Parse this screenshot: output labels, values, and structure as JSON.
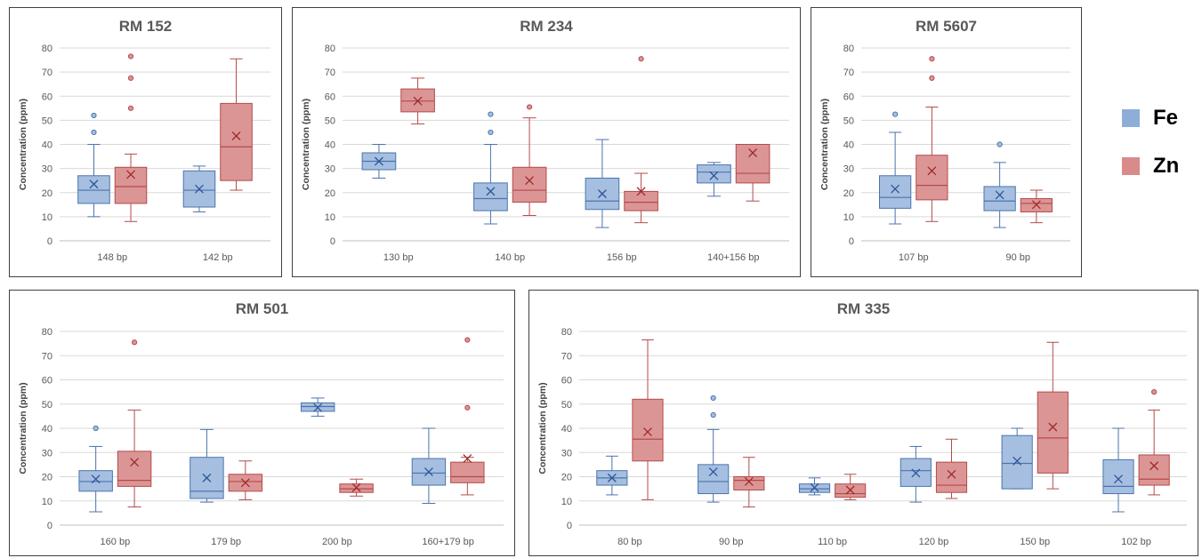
{
  "legend": [
    {
      "name": "Fe",
      "color": "#8eaed8"
    },
    {
      "name": "Zn",
      "color": "#d98a8a"
    }
  ],
  "colors": {
    "Fe_fill": "#a6bfe0",
    "Fe_stroke": "#4a74ad",
    "Fe_marker": "#2f5597",
    "Zn_fill": "#dc9595",
    "Zn_stroke": "#b54a4a",
    "Zn_marker": "#9e2a2a"
  },
  "chart_data": [
    {
      "type": "box",
      "title": "RM 152",
      "ylabel": "Concentration (ppm)",
      "ylim": [
        0,
        80
      ],
      "yticks": [
        0,
        10,
        20,
        30,
        40,
        50,
        60,
        70,
        80
      ],
      "categories": [
        "148 bp",
        "142 bp"
      ],
      "groups": [
        {
          "category": "148 bp",
          "Fe": {
            "min": 10,
            "q1": 15.5,
            "median": 21,
            "q3": 27,
            "max": 40,
            "mean": 23.5,
            "outliers": [
              45,
              52
            ]
          },
          "Zn": {
            "min": 8,
            "q1": 15.5,
            "median": 22.5,
            "q3": 30.5,
            "max": 36,
            "mean": 27.5,
            "outliers": [
              55,
              67.5,
              76.5
            ]
          }
        },
        {
          "category": "142 bp",
          "Fe": {
            "min": 12,
            "q1": 14,
            "median": 21,
            "q3": 29,
            "max": 31,
            "mean": 21.5,
            "outliers": []
          },
          "Zn": {
            "min": 21,
            "q1": 25,
            "median": 39,
            "q3": 57,
            "max": 75.5,
            "mean": 43.5,
            "outliers": []
          }
        }
      ]
    },
    {
      "type": "box",
      "title": "RM 234",
      "ylabel": "Concentration (ppm)",
      "ylim": [
        0,
        80
      ],
      "yticks": [
        0,
        10,
        20,
        30,
        40,
        50,
        60,
        70,
        80
      ],
      "categories": [
        "130 bp",
        "140 bp",
        "156 bp",
        "140+156 bp"
      ],
      "groups": [
        {
          "category": "130 bp",
          "Fe": {
            "min": 26,
            "q1": 29.5,
            "median": 33,
            "q3": 36.5,
            "max": 40,
            "mean": 33,
            "outliers": []
          },
          "Zn": {
            "min": 48.5,
            "q1": 53.5,
            "median": 58,
            "q3": 63,
            "max": 67.5,
            "mean": 58,
            "outliers": []
          }
        },
        {
          "category": "140 bp",
          "Fe": {
            "min": 7,
            "q1": 12.5,
            "median": 17.5,
            "q3": 24,
            "max": 40,
            "mean": 20.5,
            "outliers": [
              45,
              52.5
            ]
          },
          "Zn": {
            "min": 10.5,
            "q1": 16,
            "median": 21,
            "q3": 30.5,
            "max": 51,
            "mean": 25,
            "outliers": [
              55.5
            ]
          }
        },
        {
          "category": "156 bp",
          "Fe": {
            "min": 5.5,
            "q1": 13,
            "median": 16.5,
            "q3": 26,
            "max": 42,
            "mean": 19.5,
            "outliers": []
          },
          "Zn": {
            "min": 7.5,
            "q1": 12.5,
            "median": 16,
            "q3": 20.5,
            "max": 28,
            "mean": 20.5,
            "outliers": [
              75.5
            ]
          }
        },
        {
          "category": "140+156 bp",
          "Fe": {
            "min": 18.5,
            "q1": 24,
            "median": 28.5,
            "q3": 31.5,
            "max": 32.5,
            "mean": 27,
            "outliers": []
          },
          "Zn": {
            "min": 16.5,
            "q1": 24,
            "median": 28,
            "q3": 40,
            "max": 40,
            "mean": 36.5,
            "outliers": []
          }
        }
      ]
    },
    {
      "type": "box",
      "title": "RM 5607",
      "ylabel": "Concentration (ppm)",
      "ylim": [
        0,
        80
      ],
      "yticks": [
        0,
        10,
        20,
        30,
        40,
        50,
        60,
        70,
        80
      ],
      "categories": [
        "107 bp",
        "90 bp"
      ],
      "groups": [
        {
          "category": "107 bp",
          "Fe": {
            "min": 7,
            "q1": 13.5,
            "median": 18,
            "q3": 27,
            "max": 45,
            "mean": 21.5,
            "outliers": [
              52.5
            ]
          },
          "Zn": {
            "min": 8,
            "q1": 17,
            "median": 23,
            "q3": 35.5,
            "max": 55.5,
            "mean": 29,
            "outliers": [
              67.5,
              75.5
            ]
          }
        },
        {
          "category": "90 bp",
          "Fe": {
            "min": 5.5,
            "q1": 12.5,
            "median": 16.5,
            "q3": 22.5,
            "max": 32.5,
            "mean": 19,
            "outliers": [
              40
            ]
          },
          "Zn": {
            "min": 7.5,
            "q1": 12,
            "median": 15.5,
            "q3": 17.5,
            "max": 21,
            "mean": 15,
            "outliers": []
          }
        }
      ]
    },
    {
      "type": "box",
      "title": "RM 501",
      "ylabel": "Concentration (ppm)",
      "ylim": [
        0,
        80
      ],
      "yticks": [
        0,
        10,
        20,
        30,
        40,
        50,
        60,
        70,
        80
      ],
      "categories": [
        "160 bp",
        "179 bp",
        "200 bp",
        "160+179 bp"
      ],
      "groups": [
        {
          "category": "160 bp",
          "Fe": {
            "min": 5.5,
            "q1": 14,
            "median": 18,
            "q3": 22.5,
            "max": 32.5,
            "mean": 19,
            "outliers": [
              40
            ]
          },
          "Zn": {
            "min": 7.5,
            "q1": 16,
            "median": 18.5,
            "q3": 30.5,
            "max": 47.5,
            "mean": 26,
            "outliers": [
              75.5
            ]
          }
        },
        {
          "category": "179 bp",
          "Fe": {
            "min": 9.5,
            "q1": 11,
            "median": 14,
            "q3": 28,
            "max": 39.5,
            "mean": 19.5,
            "outliers": []
          },
          "Zn": {
            "min": 10.5,
            "q1": 14,
            "median": 18,
            "q3": 21,
            "max": 26.5,
            "mean": 17.5,
            "outliers": []
          }
        },
        {
          "category": "200 bp",
          "Fe": {
            "min": 45,
            "q1": 47,
            "median": 49,
            "q3": 50.5,
            "max": 52.5,
            "mean": 48.5,
            "outliers": []
          },
          "Zn": {
            "min": 12,
            "q1": 13.5,
            "median": 15,
            "q3": 17,
            "max": 19,
            "mean": 15.5,
            "outliers": []
          }
        },
        {
          "category": "160+179 bp",
          "Fe": {
            "min": 9,
            "q1": 16.5,
            "median": 21.5,
            "q3": 27.5,
            "max": 40,
            "mean": 22,
            "outliers": []
          },
          "Zn": {
            "min": 12.5,
            "q1": 17.5,
            "median": 20,
            "q3": 26,
            "max": 28,
            "mean": 27.5,
            "outliers": [
              48.5,
              76.5
            ]
          }
        }
      ]
    },
    {
      "type": "box",
      "title": "RM 335",
      "ylabel": "Concentration (ppm)",
      "ylim": [
        0,
        80
      ],
      "yticks": [
        0,
        10,
        20,
        30,
        40,
        50,
        60,
        70,
        80
      ],
      "categories": [
        "80 bp",
        "90 bp",
        "110 bp",
        "120 bp",
        "150 bp",
        "102 bp"
      ],
      "groups": [
        {
          "category": "80 bp",
          "Fe": {
            "min": 12.5,
            "q1": 16.5,
            "median": 19.5,
            "q3": 22.5,
            "max": 28.5,
            "mean": 19.5,
            "outliers": []
          },
          "Zn": {
            "min": 10.5,
            "q1": 26.5,
            "median": 35.5,
            "q3": 52,
            "max": 76.5,
            "mean": 38.5,
            "outliers": []
          }
        },
        {
          "category": "90 bp",
          "Fe": {
            "min": 9.5,
            "q1": 13,
            "median": 18,
            "q3": 25,
            "max": 39.5,
            "mean": 22,
            "outliers": [
              45.5,
              52.5
            ]
          },
          "Zn": {
            "min": 7.5,
            "q1": 14.5,
            "median": 18.5,
            "q3": 20,
            "max": 28,
            "mean": 18,
            "outliers": []
          }
        },
        {
          "category": "110 bp",
          "Fe": {
            "min": 12.5,
            "q1": 13.5,
            "median": 15,
            "q3": 17,
            "max": 19.5,
            "mean": 15.5,
            "outliers": []
          },
          "Zn": {
            "min": 10.5,
            "q1": 11.5,
            "median": 13,
            "q3": 17,
            "max": 21,
            "mean": 14.5,
            "outliers": []
          }
        },
        {
          "category": "120 bp",
          "Fe": {
            "min": 9.5,
            "q1": 16,
            "median": 22.5,
            "q3": 27.5,
            "max": 32.5,
            "mean": 21.5,
            "outliers": []
          },
          "Zn": {
            "min": 11,
            "q1": 13.5,
            "median": 16.5,
            "q3": 26,
            "max": 35.5,
            "mean": 21,
            "outliers": []
          }
        },
        {
          "category": "150 bp",
          "Fe": {
            "min": 15,
            "q1": 15,
            "median": 25.5,
            "q3": 37,
            "max": 40,
            "mean": 26.5,
            "outliers": []
          },
          "Zn": {
            "min": 15,
            "q1": 21.5,
            "median": 36,
            "q3": 55,
            "max": 75.5,
            "mean": 40.5,
            "outliers": []
          }
        },
        {
          "category": "102 bp",
          "Fe": {
            "min": 5.5,
            "q1": 13,
            "median": 16,
            "q3": 27,
            "max": 40,
            "mean": 19,
            "outliers": []
          },
          "Zn": {
            "min": 12.5,
            "q1": 16.5,
            "median": 19,
            "q3": 29,
            "max": 47.5,
            "mean": 24.5,
            "outliers": [
              55
            ]
          }
        }
      ]
    }
  ]
}
